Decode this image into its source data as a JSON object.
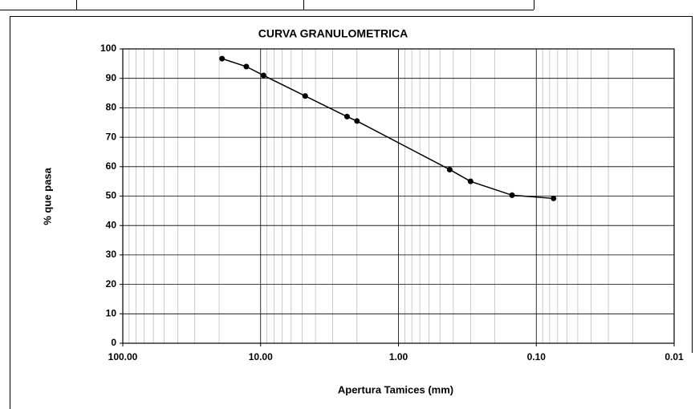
{
  "chart_data": {
    "type": "line",
    "title": "CURVA GRANULOMETRICA",
    "x_label": "Apertura Tamices (mm)",
    "y_label": "% que pasa",
    "x": [
      19.05,
      12.7,
      9.525,
      4.75,
      2.36,
      2.0,
      0.425,
      0.3,
      0.15,
      0.075
    ],
    "series": [
      {
        "color": "#000000",
        "values": [
          96.7,
          94.0,
          91.0,
          84.0,
          77.0,
          75.5,
          59.0,
          55.0,
          50.3,
          49.2
        ]
      }
    ],
    "xlim": [
      100,
      0.01
    ],
    "xticks": [
      {
        "value": 100,
        "label": "100.00"
      },
      {
        "value": 10,
        "label": "10.00"
      },
      {
        "value": 1,
        "label": "1.00"
      },
      {
        "value": 0.1,
        "label": "0.10"
      },
      {
        "value": 0.01,
        "label": "0.01"
      }
    ],
    "x_log": true,
    "ylim": [
      0,
      100
    ],
    "yticks": [
      0,
      10,
      20,
      30,
      40,
      50,
      60,
      70,
      80,
      90,
      100
    ],
    "grid": true
  }
}
